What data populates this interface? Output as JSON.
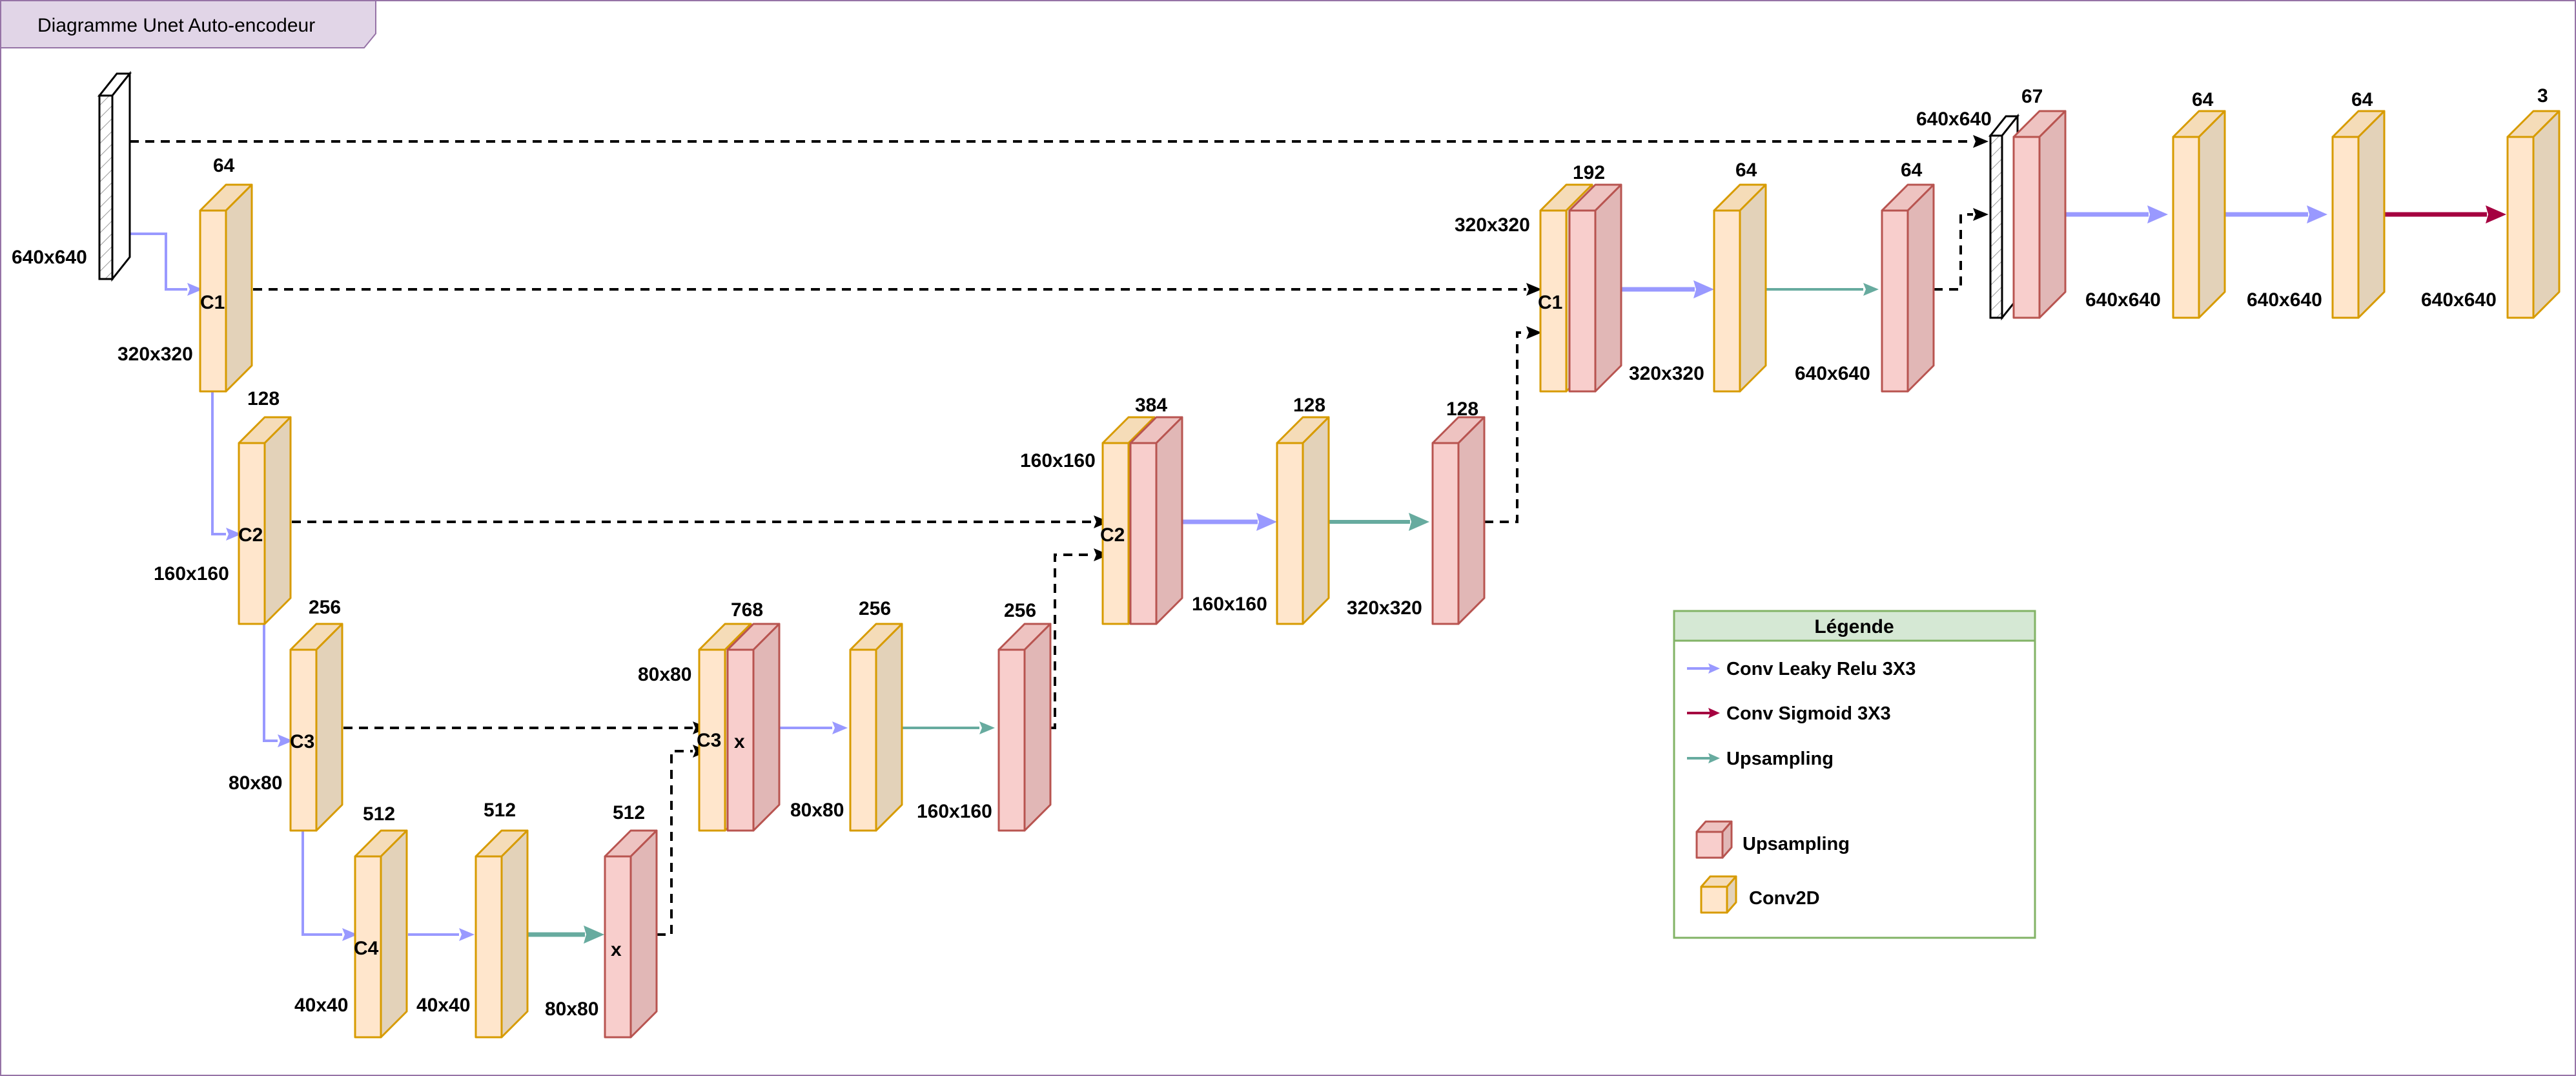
{
  "title": "Diagramme Unet Auto-encodeur",
  "colors": {
    "conv_front": "#ffe6cc",
    "conv_side": "#e3d2b9",
    "conv_top": "#f5dcb8",
    "conv_stroke": "#d79b00",
    "up_front": "#f8cecc",
    "up_side": "#e1b7b6",
    "up_top": "#eec3c1",
    "up_stroke": "#b85450",
    "relu": "#9999ff",
    "sigmoid": "#a50040",
    "upsample": "#67ab9f",
    "legend_border": "#82b366",
    "legend_header": "#d5e8d4",
    "frame": "#9673a6",
    "title_bg": "#e1d5e7"
  },
  "legend": {
    "title": "Légende",
    "conv_relu": "Conv Leaky Relu 3X3",
    "conv_sigmoid": "Conv Sigmoid 3X3",
    "upsampling_arrow": "Upsampling",
    "upsampling_block": "Upsampling",
    "conv2d_block": "Conv2D"
  },
  "labels": {
    "input_size": "640x640",
    "e1_channels": "64",
    "e1_name": "C1",
    "e1_size": "320x320",
    "e2_channels": "128",
    "e2_name": "C2",
    "e2_size": "160x160",
    "e3_channels": "256",
    "e3_name": "C3",
    "e3_size": "80x80",
    "e4_channels": "512",
    "e4_name": "C4",
    "e4_size": "40x40",
    "b1_channels": "512",
    "b1_size": "40x40",
    "b_up_channels": "512",
    "b_up_mark": "x",
    "b_up_size": "80x80",
    "d3_concat_channels": "768",
    "d3_concat_size": "80x80",
    "d3_concat_name": "C3",
    "d3_concat_mark": "x",
    "d3_conv_channels": "256",
    "d3_conv_size": "80x80",
    "d3_up_channels": "256",
    "d3_up_size": "160x160",
    "d2_concat_channels": "384",
    "d2_concat_size": "160x160",
    "d2_concat_name": "C2",
    "d2_conv_channels": "128",
    "d2_conv_size": "160x160",
    "d2_up_channels": "128",
    "d2_up_size": "320x320",
    "d1_concat_channels": "192",
    "d1_concat_size": "320x320",
    "d1_concat_name": "C1",
    "d1_conv_channels": "64",
    "d1_conv_size": "320x320",
    "d1_up_channels": "64",
    "d1_up_size": "640x640",
    "d0_concat_channels": "67",
    "d0_concat_size": "640x640",
    "f1_channels": "64",
    "f1_size": "640x640",
    "f2_channels": "64",
    "f2_size": "640x640",
    "out_channels": "3",
    "out_size": "640x640"
  }
}
